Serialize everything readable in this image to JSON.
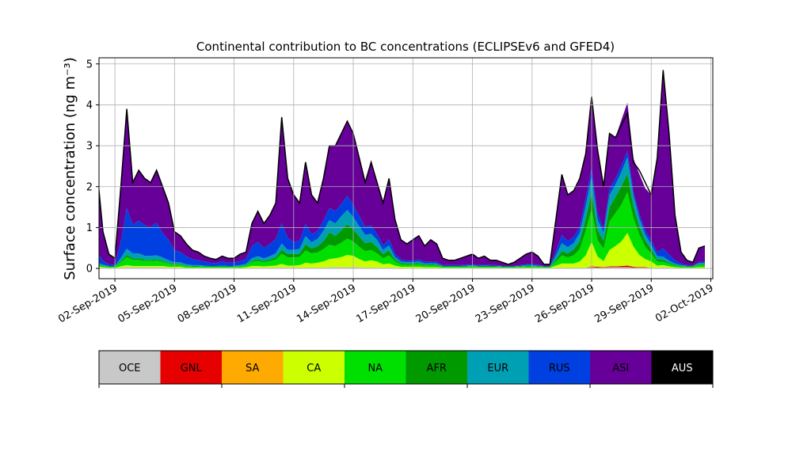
{
  "chart_data": {
    "type": "area",
    "title": "Continental contribution to BC concentrations (ECLIPSEv6 and GFED4)",
    "ylabel": "Surface concentration (ng m⁻³)",
    "ylim": [
      -0.25,
      5.15
    ],
    "yticks": [
      0,
      1,
      2,
      3,
      4,
      5
    ],
    "xlim_days": [
      -0.8,
      30.1
    ],
    "x_ticks": [
      {
        "day": 0,
        "label": "02-Sep-2019"
      },
      {
        "day": 3,
        "label": "05-Sep-2019"
      },
      {
        "day": 6,
        "label": "08-Sep-2019"
      },
      {
        "day": 9,
        "label": "11-Sep-2019"
      },
      {
        "day": 12,
        "label": "14-Sep-2019"
      },
      {
        "day": 15,
        "label": "17-Sep-2019"
      },
      {
        "day": 18,
        "label": "20-Sep-2019"
      },
      {
        "day": 21,
        "label": "23-Sep-2019"
      },
      {
        "day": 24,
        "label": "26-Sep-2019"
      },
      {
        "day": 27,
        "label": "29-Sep-2019"
      },
      {
        "day": 30,
        "label": "02-Oct-2019"
      }
    ],
    "grid": true,
    "x": [
      -0.9,
      -0.6,
      -0.3,
      0.0,
      0.3,
      0.6,
      0.9,
      1.2,
      1.5,
      1.8,
      2.1,
      2.4,
      2.7,
      3.0,
      3.3,
      3.6,
      3.9,
      4.2,
      4.5,
      4.8,
      5.1,
      5.4,
      5.7,
      6.0,
      6.3,
      6.6,
      6.9,
      7.2,
      7.5,
      7.8,
      8.1,
      8.4,
      8.7,
      9.0,
      9.3,
      9.6,
      9.9,
      10.2,
      10.5,
      10.8,
      11.1,
      11.4,
      11.7,
      12.0,
      12.3,
      12.6,
      12.9,
      13.2,
      13.5,
      13.8,
      14.1,
      14.4,
      14.7,
      15.0,
      15.3,
      15.6,
      15.9,
      16.2,
      16.5,
      16.8,
      17.1,
      17.4,
      17.7,
      18.0,
      18.3,
      18.6,
      18.9,
      19.2,
      19.5,
      19.8,
      20.1,
      20.4,
      20.7,
      21.0,
      21.3,
      21.6,
      21.9,
      22.2,
      22.5,
      22.8,
      23.1,
      23.4,
      23.7,
      24.0,
      24.3,
      24.6,
      24.9,
      25.2,
      25.5,
      25.8,
      26.1,
      26.4,
      26.7,
      27.0,
      27.3,
      27.6,
      27.9,
      28.2,
      28.5,
      28.8,
      29.1,
      29.4,
      29.7
    ],
    "total": [
      2.4,
      0.9,
      0.35,
      0.25,
      2.0,
      3.9,
      2.1,
      2.4,
      2.2,
      2.1,
      2.4,
      2.0,
      1.6,
      0.9,
      0.8,
      0.6,
      0.45,
      0.4,
      0.3,
      0.25,
      0.22,
      0.3,
      0.25,
      0.25,
      0.35,
      0.4,
      1.1,
      1.4,
      1.1,
      1.3,
      1.6,
      3.7,
      2.2,
      1.8,
      1.6,
      2.6,
      1.8,
      1.6,
      2.2,
      3.0,
      3.0,
      3.3,
      3.6,
      3.3,
      2.7,
      2.1,
      2.6,
      2.1,
      1.6,
      2.2,
      1.2,
      0.7,
      0.6,
      0.7,
      0.8,
      0.55,
      0.7,
      0.6,
      0.25,
      0.2,
      0.2,
      0.25,
      0.3,
      0.35,
      0.25,
      0.3,
      0.2,
      0.2,
      0.15,
      0.1,
      0.15,
      0.25,
      0.35,
      0.4,
      0.3,
      0.1,
      0.1,
      1.2,
      2.3,
      1.8,
      1.9,
      2.2,
      2.8,
      4.2,
      2.9,
      2.0,
      3.3,
      3.2,
      3.5,
      3.8,
      2.6,
      2.4,
      2.1,
      1.8,
      2.7,
      4.85,
      3.3,
      1.3,
      0.4,
      0.2,
      0.15,
      0.5,
      0.55
    ],
    "series": [
      {
        "name": "OCE",
        "color": "#c8c8c8",
        "values": [
          0.03,
          0.02,
          0.01,
          0.01,
          0.02,
          0.04,
          0.03,
          0.03,
          0.03,
          0.03,
          0.03,
          0.03,
          0.02,
          0.02,
          0.02,
          0.01,
          0.01,
          0.01,
          0.01,
          0.01,
          0.01,
          0.01,
          0.01,
          0.01,
          0.01,
          0.01,
          0.02,
          0.02,
          0.02,
          0.02,
          0.02,
          0.03,
          0.02,
          0.02,
          0.02,
          0.02,
          0.02,
          0.02,
          0.02,
          0.03,
          0.03,
          0.03,
          0.03,
          0.03,
          0.03,
          0.02,
          0.02,
          0.02,
          0.02,
          0.02,
          0.02,
          0.01,
          0.01,
          0.01,
          0.01,
          0.01,
          0.01,
          0.01,
          0.01,
          0.01,
          0.01,
          0.01,
          0.01,
          0.01,
          0.01,
          0.01,
          0.01,
          0.01,
          0.01,
          0.01,
          0.01,
          0.01,
          0.01,
          0.01,
          0.01,
          0.01,
          0.01,
          0.02,
          0.02,
          0.02,
          0.02,
          0.02,
          0.02,
          0.03,
          0.02,
          0.02,
          0.03,
          0.03,
          0.03,
          0.03,
          0.02,
          0.02,
          0.02,
          0.02,
          0.02,
          0.03,
          0.02,
          0.01,
          0.01,
          0.01,
          0.01,
          0.01,
          0.01
        ]
      },
      {
        "name": "GNL",
        "color": "#e60000",
        "values": [
          0,
          0,
          0,
          0,
          0,
          0,
          0,
          0,
          0,
          0,
          0,
          0,
          0,
          0,
          0,
          0,
          0,
          0,
          0,
          0,
          0,
          0,
          0,
          0,
          0,
          0,
          0,
          0,
          0,
          0,
          0,
          0,
          0,
          0,
          0,
          0,
          0,
          0,
          0,
          0,
          0,
          0,
          0,
          0,
          0,
          0,
          0,
          0,
          0,
          0,
          0,
          0,
          0,
          0,
          0,
          0,
          0,
          0,
          0,
          0,
          0,
          0,
          0,
          0,
          0,
          0,
          0,
          0,
          0,
          0,
          0,
          0,
          0,
          0,
          0,
          0,
          0,
          0,
          0,
          0,
          0,
          0,
          0,
          0.02,
          0.02,
          0.01,
          0.02,
          0.02,
          0.03,
          0.04,
          0.02,
          0.01,
          0.01,
          0,
          0,
          0,
          0,
          0,
          0,
          0,
          0,
          0,
          0
        ]
      },
      {
        "name": "SA",
        "color": "#ffaa00",
        "values": [
          0,
          0,
          0,
          0,
          0,
          0,
          0,
          0,
          0,
          0,
          0,
          0,
          0,
          0,
          0,
          0,
          0,
          0,
          0,
          0,
          0,
          0,
          0,
          0,
          0,
          0,
          0,
          0,
          0,
          0,
          0,
          0,
          0,
          0,
          0,
          0,
          0,
          0,
          0,
          0,
          0,
          0,
          0,
          0,
          0,
          0,
          0,
          0,
          0,
          0,
          0,
          0,
          0,
          0,
          0,
          0,
          0,
          0,
          0,
          0,
          0,
          0,
          0,
          0,
          0,
          0,
          0,
          0,
          0,
          0,
          0,
          0,
          0,
          0,
          0,
          0,
          0,
          0,
          0,
          0,
          0,
          0,
          0,
          0,
          0,
          0,
          0,
          0,
          0,
          0,
          0,
          0,
          0,
          0,
          0,
          0,
          0,
          0,
          0,
          0,
          0,
          0,
          0
        ]
      },
      {
        "name": "CA",
        "color": "#ccff00",
        "values": [
          0.02,
          0.01,
          0.01,
          0.01,
          0.03,
          0.04,
          0.03,
          0.03,
          0.03,
          0.03,
          0.03,
          0.03,
          0.02,
          0.02,
          0.02,
          0.01,
          0.01,
          0.01,
          0.01,
          0.01,
          0.01,
          0.01,
          0.01,
          0.01,
          0.01,
          0.02,
          0.04,
          0.04,
          0.03,
          0.04,
          0.05,
          0.08,
          0.05,
          0.05,
          0.06,
          0.12,
          0.1,
          0.12,
          0.15,
          0.2,
          0.22,
          0.25,
          0.3,
          0.28,
          0.2,
          0.15,
          0.18,
          0.15,
          0.08,
          0.1,
          0.05,
          0.03,
          0.03,
          0.03,
          0.03,
          0.02,
          0.02,
          0.02,
          0.01,
          0.01,
          0.01,
          0.01,
          0.01,
          0.01,
          0.01,
          0.01,
          0.01,
          0.01,
          0.01,
          0.01,
          0.01,
          0.01,
          0.01,
          0.01,
          0.01,
          0.01,
          0.01,
          0.05,
          0.1,
          0.1,
          0.1,
          0.15,
          0.3,
          0.6,
          0.25,
          0.15,
          0.4,
          0.5,
          0.6,
          0.8,
          0.5,
          0.3,
          0.2,
          0.15,
          0.05,
          0.05,
          0.03,
          0.02,
          0.01,
          0.01,
          0.01,
          0.02,
          0.02
        ]
      },
      {
        "name": "NA",
        "color": "#00e000",
        "values": [
          0.05,
          0.03,
          0.02,
          0.02,
          0.1,
          0.2,
          0.15,
          0.15,
          0.12,
          0.12,
          0.13,
          0.1,
          0.08,
          0.05,
          0.05,
          0.04,
          0.03,
          0.03,
          0.02,
          0.02,
          0.02,
          0.02,
          0.02,
          0.02,
          0.03,
          0.04,
          0.1,
          0.12,
          0.1,
          0.12,
          0.15,
          0.25,
          0.2,
          0.2,
          0.2,
          0.3,
          0.25,
          0.25,
          0.3,
          0.35,
          0.3,
          0.35,
          0.4,
          0.35,
          0.3,
          0.25,
          0.25,
          0.2,
          0.15,
          0.2,
          0.1,
          0.06,
          0.05,
          0.05,
          0.06,
          0.04,
          0.05,
          0.04,
          0.02,
          0.02,
          0.02,
          0.02,
          0.02,
          0.03,
          0.02,
          0.02,
          0.02,
          0.02,
          0.01,
          0.01,
          0.01,
          0.02,
          0.03,
          0.03,
          0.02,
          0.01,
          0.01,
          0.1,
          0.2,
          0.15,
          0.2,
          0.3,
          0.6,
          0.8,
          0.4,
          0.3,
          0.7,
          0.8,
          0.9,
          1.0,
          0.7,
          0.5,
          0.3,
          0.2,
          0.1,
          0.08,
          0.06,
          0.04,
          0.03,
          0.02,
          0.02,
          0.05,
          0.05
        ]
      },
      {
        "name": "AFR",
        "color": "#009900",
        "values": [
          0.02,
          0.01,
          0.01,
          0.01,
          0.03,
          0.05,
          0.04,
          0.04,
          0.03,
          0.03,
          0.03,
          0.03,
          0.02,
          0.02,
          0.02,
          0.01,
          0.01,
          0.01,
          0.01,
          0.01,
          0.01,
          0.01,
          0.01,
          0.01,
          0.01,
          0.01,
          0.03,
          0.04,
          0.03,
          0.04,
          0.05,
          0.1,
          0.08,
          0.08,
          0.08,
          0.15,
          0.12,
          0.15,
          0.2,
          0.3,
          0.25,
          0.3,
          0.35,
          0.3,
          0.25,
          0.2,
          0.2,
          0.15,
          0.1,
          0.12,
          0.05,
          0.03,
          0.03,
          0.03,
          0.03,
          0.02,
          0.02,
          0.02,
          0.01,
          0.01,
          0.01,
          0.01,
          0.01,
          0.01,
          0.01,
          0.01,
          0.01,
          0.01,
          0.01,
          0.01,
          0.01,
          0.01,
          0.01,
          0.01,
          0.01,
          0.01,
          0.01,
          0.05,
          0.1,
          0.1,
          0.15,
          0.2,
          0.3,
          0.4,
          0.25,
          0.2,
          0.35,
          0.4,
          0.45,
          0.45,
          0.3,
          0.2,
          0.15,
          0.1,
          0.05,
          0.05,
          0.03,
          0.02,
          0.01,
          0.01,
          0.01,
          0.02,
          0.02
        ]
      },
      {
        "name": "EUR",
        "color": "#00a0b4",
        "values": [
          0.03,
          0.02,
          0.01,
          0.01,
          0.08,
          0.15,
          0.12,
          0.12,
          0.1,
          0.1,
          0.1,
          0.08,
          0.06,
          0.04,
          0.04,
          0.03,
          0.02,
          0.02,
          0.02,
          0.01,
          0.01,
          0.02,
          0.01,
          0.01,
          0.02,
          0.03,
          0.06,
          0.08,
          0.07,
          0.08,
          0.1,
          0.15,
          0.1,
          0.1,
          0.12,
          0.2,
          0.15,
          0.18,
          0.25,
          0.3,
          0.3,
          0.35,
          0.35,
          0.3,
          0.25,
          0.2,
          0.2,
          0.18,
          0.1,
          0.12,
          0.06,
          0.04,
          0.03,
          0.03,
          0.04,
          0.03,
          0.03,
          0.03,
          0.01,
          0.01,
          0.01,
          0.01,
          0.02,
          0.02,
          0.01,
          0.02,
          0.01,
          0.01,
          0.01,
          0.01,
          0.01,
          0.01,
          0.02,
          0.02,
          0.02,
          0.01,
          0.01,
          0.1,
          0.2,
          0.15,
          0.15,
          0.2,
          0.3,
          0.4,
          0.25,
          0.2,
          0.3,
          0.3,
          0.35,
          0.4,
          0.25,
          0.2,
          0.15,
          0.12,
          0.08,
          0.08,
          0.05,
          0.03,
          0.02,
          0.01,
          0.01,
          0.03,
          0.03
        ]
      },
      {
        "name": "RUS",
        "color": "#0040e0",
        "values": [
          0.25,
          0.1,
          0.04,
          0.03,
          0.4,
          1.0,
          0.7,
          0.8,
          0.75,
          0.7,
          0.8,
          0.6,
          0.5,
          0.3,
          0.25,
          0.2,
          0.15,
          0.12,
          0.1,
          0.08,
          0.07,
          0.1,
          0.08,
          0.08,
          0.1,
          0.12,
          0.3,
          0.35,
          0.25,
          0.3,
          0.35,
          0.5,
          0.3,
          0.2,
          0.2,
          0.3,
          0.2,
          0.2,
          0.25,
          0.3,
          0.3,
          0.3,
          0.35,
          0.3,
          0.25,
          0.2,
          0.2,
          0.15,
          0.12,
          0.15,
          0.08,
          0.05,
          0.04,
          0.04,
          0.05,
          0.04,
          0.04,
          0.04,
          0.02,
          0.02,
          0.02,
          0.02,
          0.02,
          0.02,
          0.02,
          0.02,
          0.02,
          0.02,
          0.01,
          0.01,
          0.01,
          0.02,
          0.02,
          0.03,
          0.02,
          0.01,
          0.01,
          0.1,
          0.2,
          0.15,
          0.15,
          0.15,
          0.2,
          0.2,
          0.15,
          0.1,
          0.15,
          0.15,
          0.15,
          0.15,
          0.1,
          0.1,
          0.1,
          0.1,
          0.1,
          0.2,
          0.15,
          0.08,
          0.04,
          0.02,
          0.01,
          0.03,
          0.04
        ]
      },
      {
        "name": "ASI",
        "color": "#660099",
        "values": [
          2.0,
          0.71,
          0.25,
          0.16,
          1.34,
          2.42,
          1.03,
          1.23,
          1.14,
          1.09,
          1.28,
          1.13,
          0.9,
          0.45,
          0.4,
          0.3,
          0.22,
          0.2,
          0.14,
          0.11,
          0.09,
          0.13,
          0.11,
          0.11,
          0.17,
          0.17,
          0.55,
          0.75,
          0.6,
          0.7,
          0.88,
          2.59,
          1.45,
          1.15,
          0.92,
          1.51,
          0.96,
          0.68,
          1.03,
          1.52,
          1.6,
          1.72,
          1.82,
          1.74,
          1.42,
          1.08,
          1.55,
          1.25,
          1.03,
          1.49,
          0.84,
          0.48,
          0.41,
          0.51,
          0.58,
          0.39,
          0.53,
          0.44,
          0.17,
          0.13,
          0.13,
          0.17,
          0.21,
          0.25,
          0.17,
          0.21,
          0.12,
          0.12,
          0.1,
          0.05,
          0.1,
          0.18,
          0.26,
          0.3,
          0.22,
          0.05,
          0.05,
          0.78,
          1.48,
          1.13,
          1.13,
          1.18,
          1.08,
          1.75,
          1.56,
          1.02,
          1.33,
          1.0,
          1.12,
          1.18,
          0.8,
          0.98,
          1.03,
          1.11,
          2.3,
          4.36,
          2.96,
          1.1,
          0.28,
          0.12,
          0.08,
          0.34,
          0.38
        ]
      },
      {
        "name": "AUS",
        "color": "#000000",
        "values": [
          0,
          0,
          0,
          0,
          0,
          0,
          0,
          0,
          0,
          0,
          0,
          0,
          0,
          0,
          0,
          0,
          0,
          0,
          0,
          0,
          0,
          0,
          0,
          0,
          0,
          0,
          0,
          0,
          0,
          0,
          0,
          0,
          0,
          0,
          0,
          0,
          0,
          0,
          0,
          0,
          0,
          0,
          0,
          0,
          0,
          0,
          0,
          0,
          0,
          0,
          0,
          0,
          0,
          0,
          0,
          0,
          0,
          0,
          0,
          0,
          0,
          0,
          0,
          0,
          0,
          0,
          0,
          0,
          0,
          0,
          0,
          0,
          0,
          0,
          0,
          0,
          0,
          0,
          0,
          0,
          0,
          0,
          0,
          0,
          0,
          0,
          0,
          0,
          0,
          0,
          0,
          0,
          0,
          0,
          0,
          0,
          0,
          0,
          0,
          0,
          0,
          0,
          0
        ]
      }
    ]
  }
}
